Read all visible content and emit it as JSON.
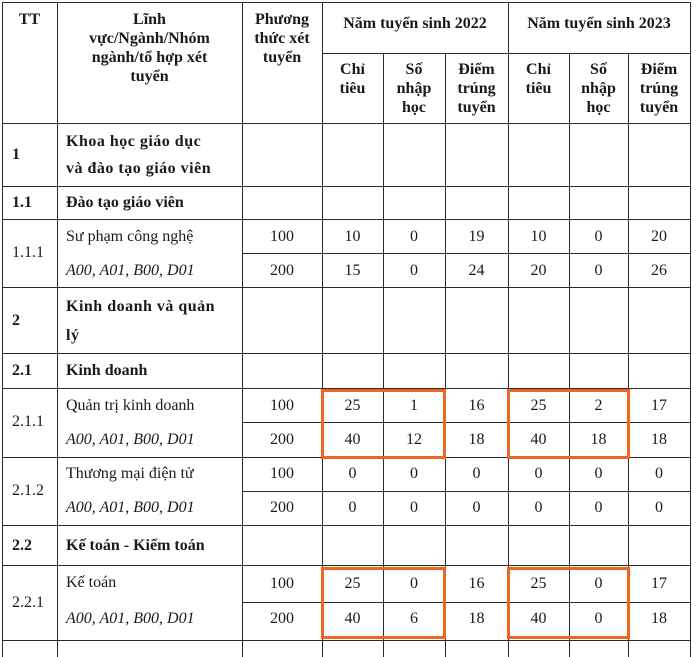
{
  "header": {
    "tt": "TT",
    "field": [
      "Lĩnh",
      "vực/Ngành/Nhóm",
      "ngành/tổ hợp xét",
      "tuyển"
    ],
    "method": [
      "Phương",
      "thức xét",
      "tuyển"
    ],
    "year2022": "Năm tuyển sinh 2022",
    "year2023": "Năm tuyển sinh 2023",
    "quota": [
      "Chỉ",
      "tiêu"
    ],
    "enrolled": [
      "Số",
      "nhập",
      "học"
    ],
    "score": [
      "Điểm",
      "trúng",
      "tuyển"
    ]
  },
  "rows": {
    "r1": {
      "tt": "1",
      "name": [
        "Khoa học giáo dục",
        "và đào tạo giáo viên"
      ]
    },
    "r1_1": {
      "tt": "1.1",
      "name": "Đào tạo giáo viên"
    },
    "r1_1_1": {
      "tt": "1.1.1",
      "name": "Sư phạm công nghệ",
      "combo": "A00, A01, B00, D01",
      "lines": [
        {
          "method": "100",
          "q22": "10",
          "e22": "0",
          "s22": "19",
          "q23": "10",
          "e23": "0",
          "s23": "20"
        },
        {
          "method": "200",
          "q22": "15",
          "e22": "0",
          "s22": "24",
          "q23": "20",
          "e23": "0",
          "s23": "26"
        }
      ]
    },
    "r2": {
      "tt": "2",
      "name": [
        "Kinh doanh và quản",
        "lý"
      ]
    },
    "r2_1": {
      "tt": "2.1",
      "name": "Kinh doanh"
    },
    "r2_1_1": {
      "tt": "2.1.1",
      "name": "Quản trị kinh doanh",
      "combo": "A00, A01, B00, D01",
      "lines": [
        {
          "method": "100",
          "q22": "25",
          "e22": "1",
          "s22": "16",
          "q23": "25",
          "e23": "2",
          "s23": "17"
        },
        {
          "method": "200",
          "q22": "40",
          "e22": "12",
          "s22": "18",
          "q23": "40",
          "e23": "18",
          "s23": "18"
        }
      ]
    },
    "r2_1_2": {
      "tt": "2.1.2",
      "name": "Thương mại điện tử",
      "combo": "A00, A01, B00, D01",
      "lines": [
        {
          "method": "100",
          "q22": "0",
          "e22": "0",
          "s22": "0",
          "q23": "0",
          "e23": "0",
          "s23": "0"
        },
        {
          "method": "200",
          "q22": "0",
          "e22": "0",
          "s22": "0",
          "q23": "0",
          "e23": "0",
          "s23": "0"
        }
      ]
    },
    "r2_2": {
      "tt": "2.2",
      "name": "Kế toán - Kiểm toán"
    },
    "r2_2_1": {
      "tt": "2.2.1",
      "name": "Kế toán",
      "combo": "A00, A01, B00, D01",
      "lines": [
        {
          "method": "100",
          "q22": "25",
          "e22": "0",
          "s22": "16",
          "q23": "25",
          "e23": "0",
          "s23": "17"
        },
        {
          "method": "200",
          "q22": "40",
          "e22": "6",
          "s22": "18",
          "q23": "40",
          "e23": "0",
          "s23": "18"
        }
      ]
    }
  },
  "highlight_color": "#f2651e"
}
